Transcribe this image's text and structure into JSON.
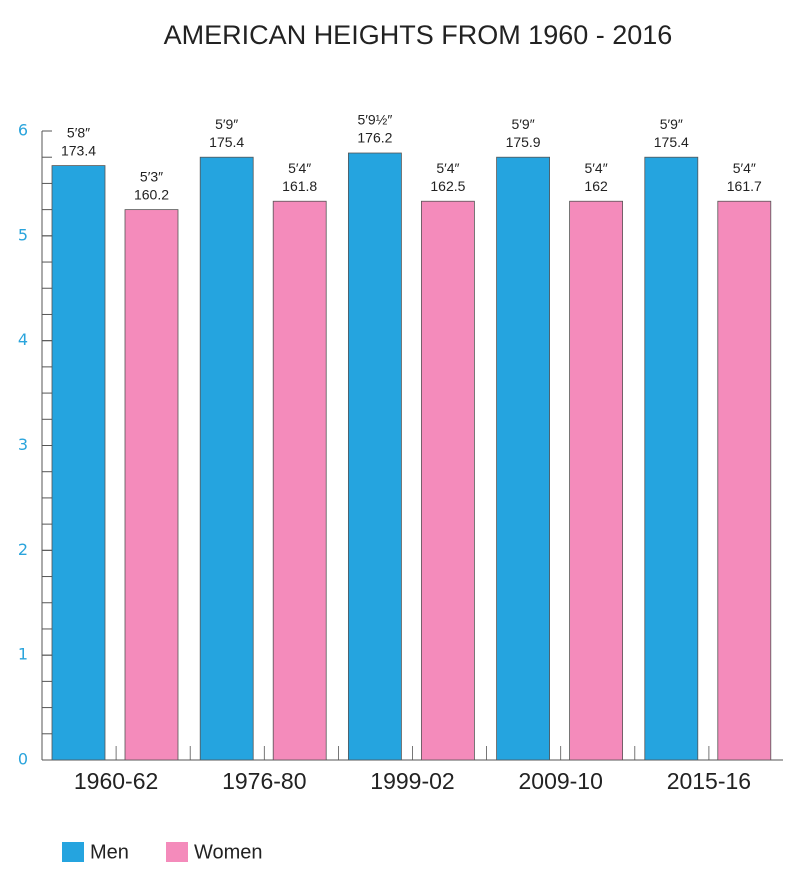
{
  "chart_data": {
    "type": "bar",
    "title": "AMERICAN HEIGHTS FROM 1960 - 2016",
    "categories": [
      "1960-62",
      "1976-80",
      "1999-02",
      "2009-10",
      "2015-16"
    ],
    "series": [
      {
        "name": "Men",
        "color": "#25a4df",
        "values": [
          5.67,
          5.75,
          5.79,
          5.75,
          5.75
        ],
        "value_labels": [
          "5′8″",
          "5′9″",
          "5′9½″",
          "5′9″",
          "5′9″"
        ],
        "metric_labels": [
          "173.4",
          "175.4",
          "176.2",
          "175.9",
          "175.4"
        ]
      },
      {
        "name": "Women",
        "color": "#f48bbb",
        "values": [
          5.25,
          5.33,
          5.33,
          5.33,
          5.33
        ],
        "value_labels": [
          "5′3″",
          "5′4″",
          "5′4″",
          "5′4″",
          "5′4″"
        ],
        "metric_labels": [
          "160.2",
          "161.8",
          "162.5",
          "162",
          "161.7"
        ]
      }
    ],
    "ylim": [
      0,
      6
    ],
    "yticks": [
      0,
      1,
      2,
      3,
      4,
      5,
      6
    ],
    "minor_tick_step": 0.25,
    "legend": "bottom-left"
  }
}
